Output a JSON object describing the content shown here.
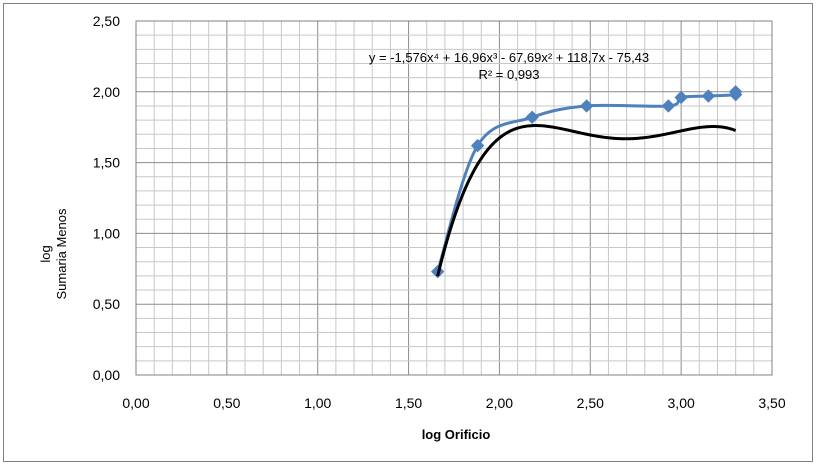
{
  "chart_data": {
    "type": "scatter",
    "xlabel": "log Orificio",
    "ylabel": [
      "log",
      "Sumaria Menos"
    ],
    "xlim": [
      0,
      3.5
    ],
    "ylim": [
      0,
      2.5
    ],
    "x_ticks": [
      "0,00",
      "0,50",
      "1,00",
      "1,50",
      "2,00",
      "2,50",
      "3,00",
      "3,50"
    ],
    "y_ticks": [
      "0,00",
      "0,50",
      "1,00",
      "1,50",
      "2,00",
      "2,50"
    ],
    "x_tick_values": [
      0,
      0.5,
      1,
      1.5,
      2,
      2.5,
      3,
      3.5
    ],
    "y_tick_values": [
      0,
      0.5,
      1,
      1.5,
      2,
      2.5
    ],
    "grid": true,
    "series": [
      {
        "color": "#4f81bd",
        "marker": "diamond",
        "x": [
          1.66,
          1.88,
          2.18,
          2.48,
          2.93,
          3.0,
          3.15,
          3.3,
          3.3
        ],
        "y": [
          0.73,
          1.62,
          1.82,
          1.9,
          1.9,
          1.96,
          1.97,
          1.98,
          2.0
        ]
      }
    ],
    "trendline": {
      "type": "polynomial",
      "order": 4,
      "color": "#000000",
      "coefficients": [
        -1.576,
        16.96,
        -67.69,
        118.7,
        -75.43
      ],
      "x_range": [
        1.66,
        3.3
      ],
      "equation": "y = -1,576x⁴ + 16,96x³ - 67,69x² + 118,7x - 75,43",
      "r_squared": "R² = 0,993"
    }
  }
}
